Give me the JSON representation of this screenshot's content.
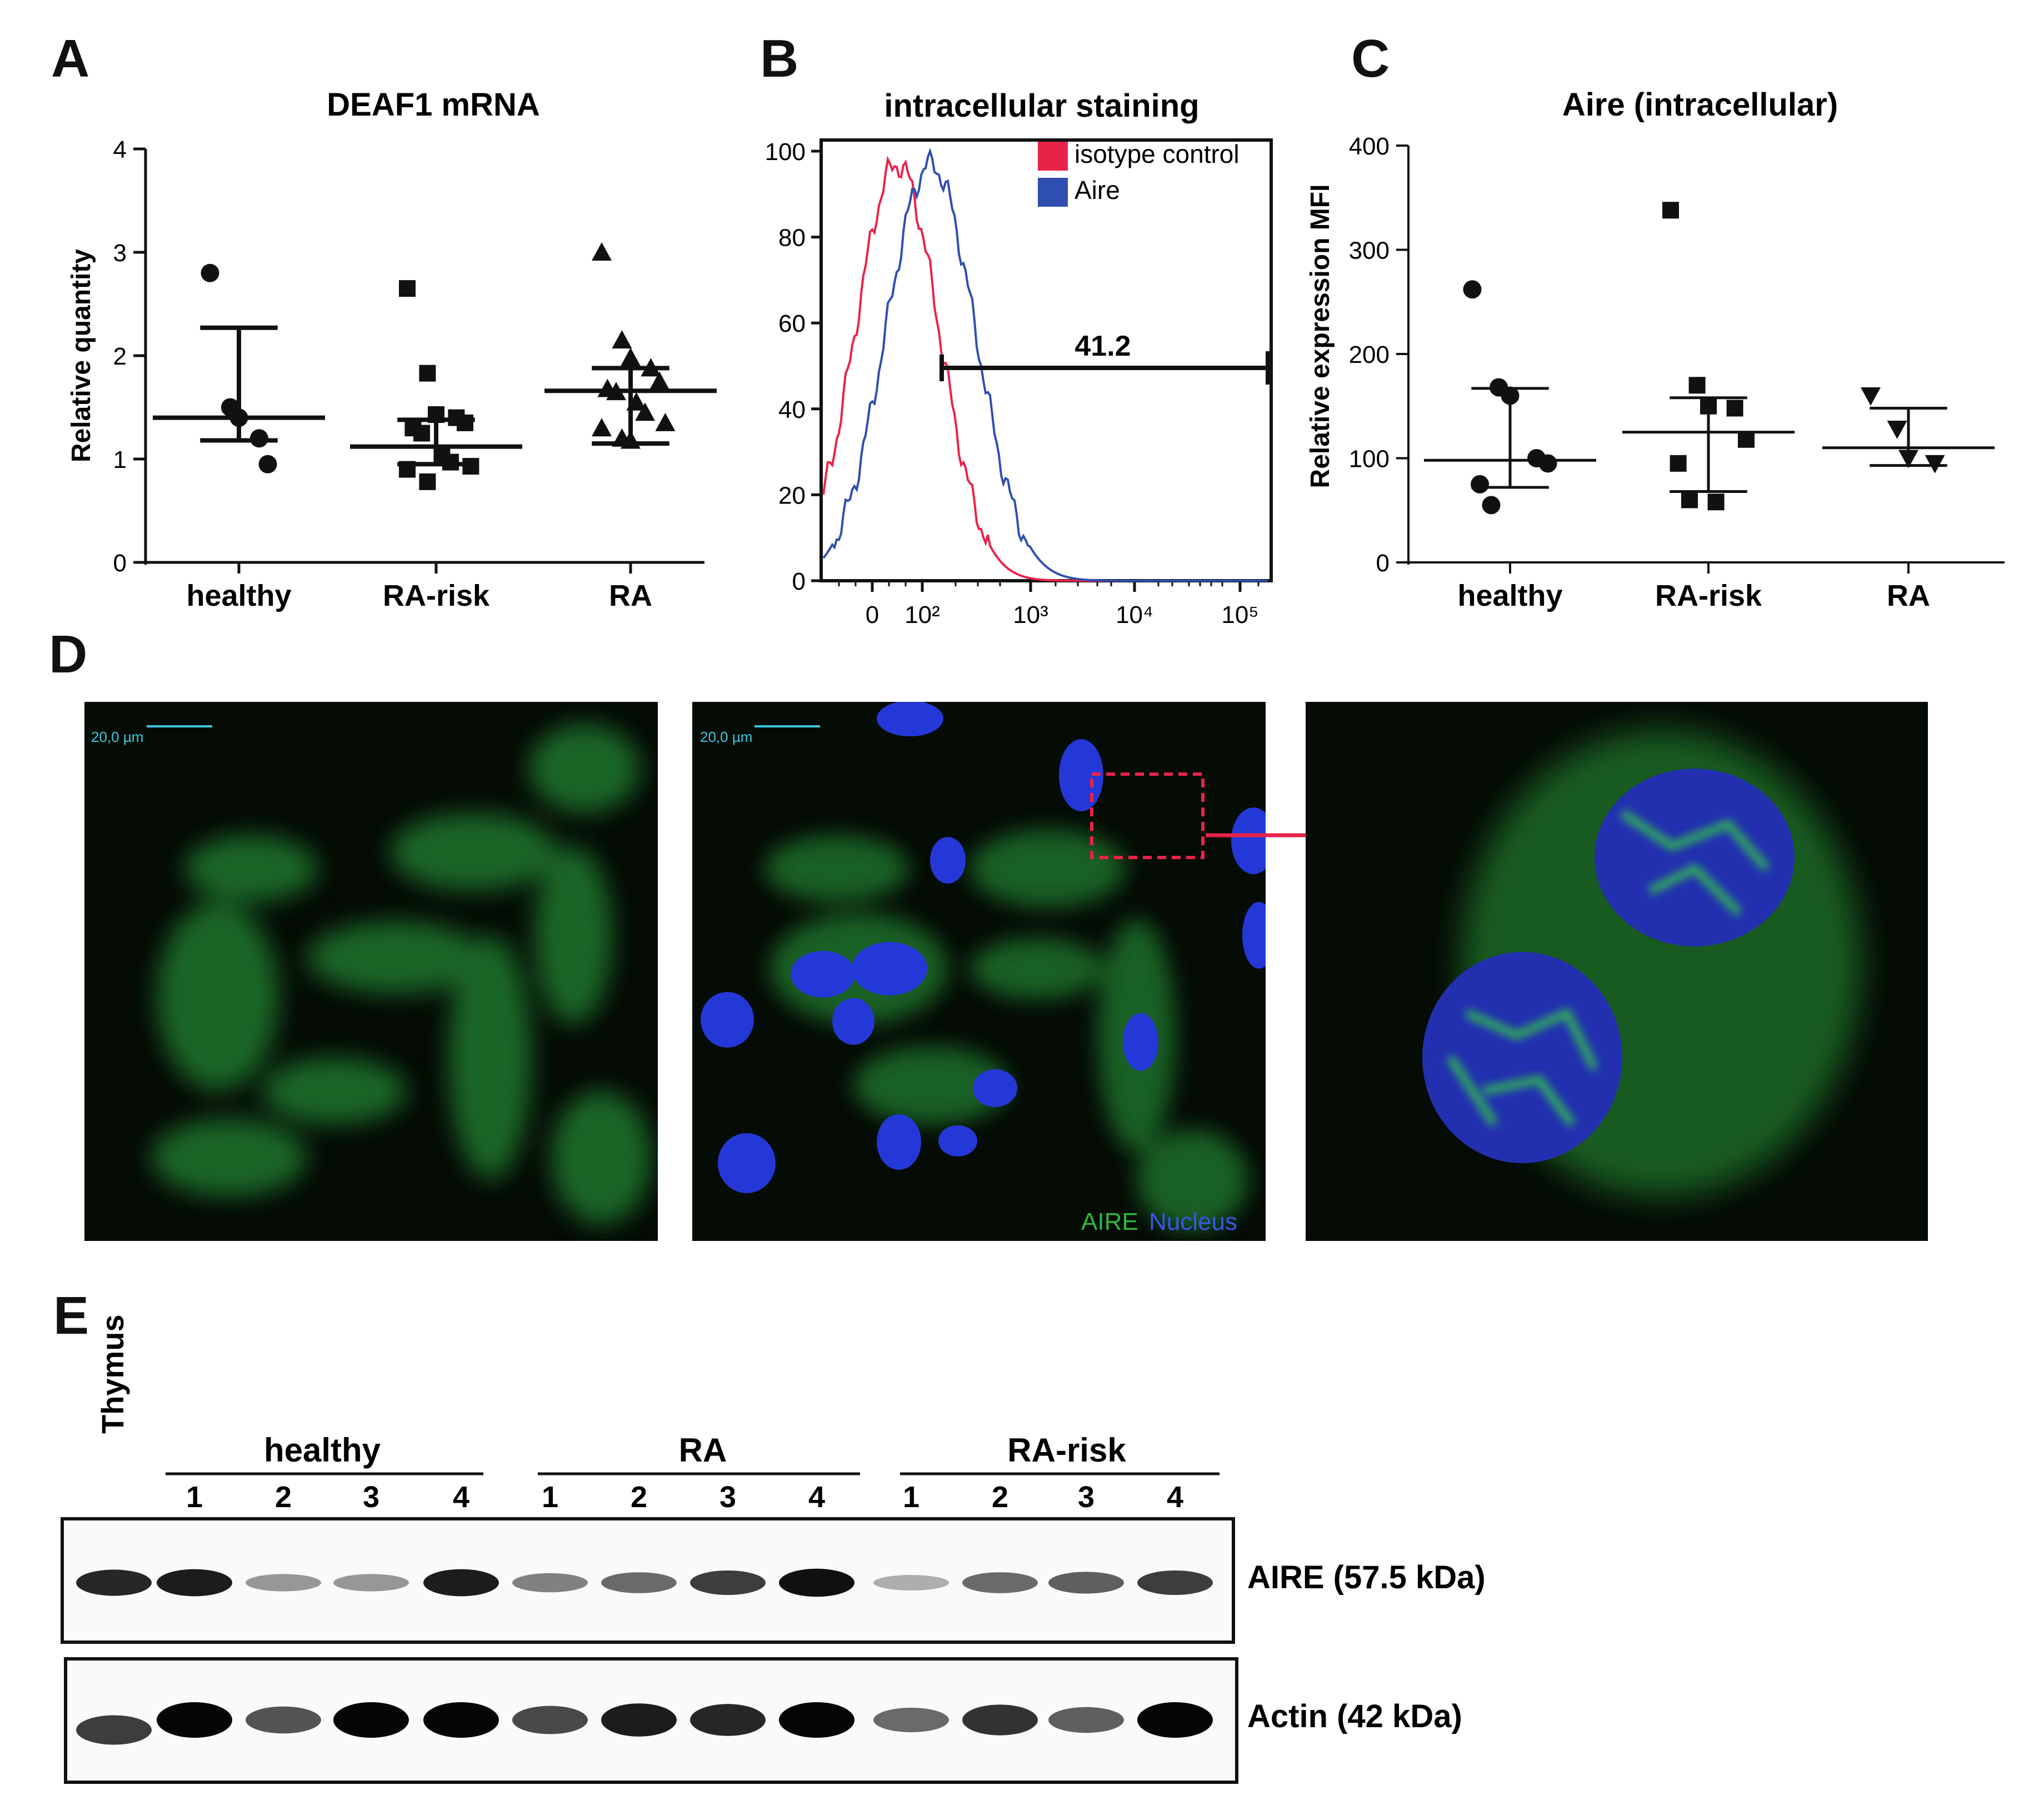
{
  "panels": {
    "A": "A",
    "B": "B",
    "C": "C",
    "D": "D",
    "E": "E"
  },
  "chart_data": [
    {
      "panel": "A",
      "type": "scatter",
      "title": "DEAF1 mRNA",
      "ylabel": "Relative quantity",
      "xlabel": "",
      "ylim": [
        0,
        4
      ],
      "yticks": [
        "0",
        "1",
        "2",
        "3",
        "4"
      ],
      "categories": [
        "healthy",
        "RA-risk",
        "RA"
      ],
      "markers": [
        "circle",
        "square",
        "triangle"
      ],
      "points": [
        [
          2.8,
          1.5,
          1.4,
          1.2,
          0.95
        ],
        [
          2.65,
          1.83,
          1.43,
          1.4,
          1.35,
          1.3,
          1.25,
          1.05,
          0.97,
          0.93,
          0.9,
          0.78
        ],
        [
          3.0,
          2.15,
          1.98,
          1.88,
          1.75,
          1.68,
          1.65,
          1.55,
          1.45,
          1.35,
          1.3,
          1.2,
          1.18
        ]
      ],
      "median": [
        1.4,
        1.12,
        1.66
      ],
      "whisker_low": [
        1.18,
        0.95,
        1.15
      ],
      "whisker_high": [
        2.27,
        1.38,
        1.88
      ]
    },
    {
      "panel": "B",
      "type": "line",
      "title": "intracellular staining",
      "ylim": [
        0,
        100
      ],
      "yticks": [
        "0",
        "20",
        "40",
        "60",
        "80",
        "100"
      ],
      "xticks": [
        "0",
        "10²",
        "10³",
        "10⁴",
        "10⁵"
      ],
      "series": [
        {
          "name": "isotype control",
          "color": "#e8234a"
        },
        {
          "name": "Aire",
          "color": "#2f4fb0"
        }
      ],
      "gate_label": "41.2"
    },
    {
      "panel": "C",
      "type": "scatter",
      "title": "Aire (intracellular)",
      "ylabel": "Relative expression MFI",
      "xlabel": "",
      "ylim": [
        0,
        400
      ],
      "yticks": [
        "0",
        "100",
        "200",
        "300",
        "400"
      ],
      "categories": [
        "healthy",
        "RA-risk",
        "RA"
      ],
      "markers": [
        "circle",
        "square",
        "triangle-down"
      ],
      "points": [
        [
          262,
          168,
          160,
          100,
          95,
          75,
          55
        ],
        [
          338,
          170,
          150,
          148,
          118,
          95,
          60,
          58
        ],
        [
          160,
          128,
          100,
          95
        ]
      ],
      "median": [
        98,
        125,
        110
      ],
      "whisker_low": [
        72,
        68,
        93
      ],
      "whisker_high": [
        167,
        158,
        148
      ]
    }
  ],
  "microscopy": {
    "scalebar": "20,0 µm",
    "legend_aire": "AIRE",
    "legend_nucleus": "Nucleus",
    "colors": {
      "aire": "#2fb83a",
      "nucleus": "#2438d8",
      "arrow": "#e8234a"
    }
  },
  "western": {
    "thymus": "Thymus",
    "groups": [
      "healthy",
      "RA",
      "RA-risk"
    ],
    "lanes": [
      "1",
      "2",
      "3",
      "4"
    ],
    "band_labels": [
      "AIRE (57.5 kDa)",
      "Actin (42 kDa)"
    ],
    "aire_intensity": [
      0.85,
      0.9,
      0.35,
      0.35,
      0.9,
      0.45,
      0.55,
      0.75,
      0.95,
      0.25,
      0.55,
      0.6,
      0.75
    ],
    "actin_intensity": [
      0.75,
      1.0,
      0.65,
      1.0,
      1.0,
      0.7,
      0.9,
      0.85,
      1.0,
      0.55,
      0.8,
      0.6,
      1.0
    ]
  }
}
